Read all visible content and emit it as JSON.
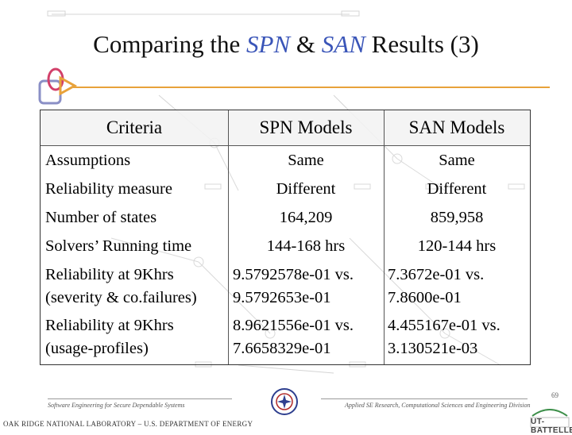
{
  "slide": {
    "title_prefix": "Comparing the ",
    "title_spn": "SPN",
    "title_amp": " & ",
    "title_san": "SAN",
    "title_suffix": " Results (3)"
  },
  "table": {
    "headers": [
      "Criteria",
      "SPN Models",
      "SAN Models"
    ],
    "rows": [
      {
        "criteria": "Assumptions",
        "spn": "Same",
        "san": "Same"
      },
      {
        "criteria": "Reliability measure",
        "spn": "Different",
        "san": "Different"
      },
      {
        "criteria": "Number of states",
        "spn": "164,209",
        "san": "859,958"
      },
      {
        "criteria": "Solvers’ Running time",
        "spn": "144-168 hrs",
        "san": "120-144 hrs"
      },
      {
        "criteria_line1": "Reliability at 9Khrs",
        "criteria_line2": "(severity & co.failures)",
        "spn_line1": "9.5792578e-01 vs.",
        "spn_line2": "9.5792653e-01",
        "san_line1": "7.3672e-01 vs.",
        "san_line2": "7.8600e-01"
      },
      {
        "criteria_line1": "Reliability at 9Khrs",
        "criteria_line2": "(usage-profiles)",
        "spn_line1": "8.9621556e-01 vs.",
        "spn_line2": "7.6658329e-01",
        "san_line1": "4.455167e-01 vs.",
        "san_line2": "3.130521e-03"
      }
    ]
  },
  "footer": {
    "left": "Software Engineering for Secure Dependable Systems",
    "right": "Applied SE Research, Computational Sciences and Engineering Division",
    "org": "OAK RIDGE NATIONAL LABORATORY – U.S. DEPARTMENT OF ENERGY",
    "page": "69",
    "brand": "UT-BATTELLE"
  },
  "colors": {
    "title_accent": "#3a55b8",
    "rule": "#e8a23a",
    "diagram": "#d9d9d9"
  }
}
